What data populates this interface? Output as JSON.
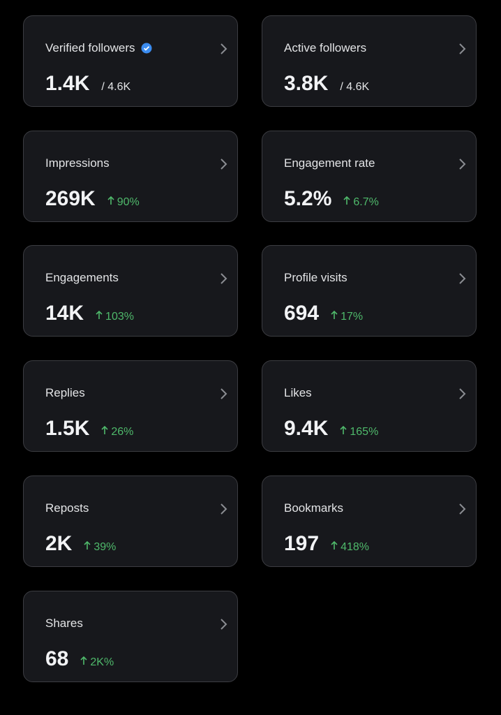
{
  "cards": [
    {
      "label": "Verified followers",
      "value": "1.4K",
      "total": "/ 4.6K",
      "verified": true
    },
    {
      "label": "Active followers",
      "value": "3.8K",
      "total": "/ 4.6K"
    },
    {
      "label": "Impressions",
      "value": "269K",
      "change": "90%"
    },
    {
      "label": "Engagement rate",
      "value": "5.2%",
      "change": "6.7%"
    },
    {
      "label": "Engagements",
      "value": "14K",
      "change": "103%"
    },
    {
      "label": "Profile visits",
      "value": "694",
      "change": "17%"
    },
    {
      "label": "Replies",
      "value": "1.5K",
      "change": "26%"
    },
    {
      "label": "Likes",
      "value": "9.4K",
      "change": "165%"
    },
    {
      "label": "Reposts",
      "value": "2K",
      "change": "39%"
    },
    {
      "label": "Bookmarks",
      "value": "197",
      "change": "418%"
    },
    {
      "label": "Shares",
      "value": "68",
      "change": "2K%"
    }
  ]
}
